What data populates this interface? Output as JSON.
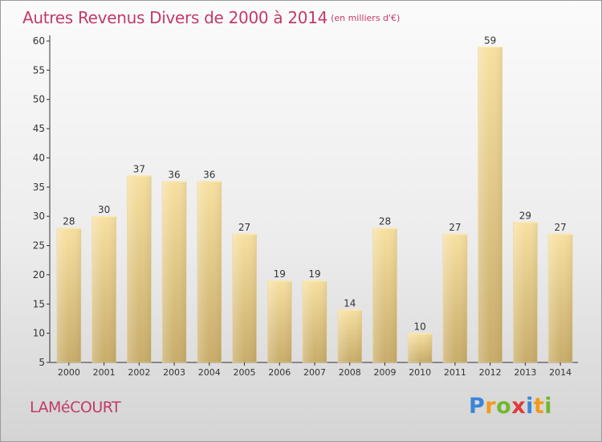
{
  "chart_data": {
    "type": "bar",
    "title": "Autres Revenus Divers de 2000 à 2014",
    "subtitle": "(en milliers d'€)",
    "categories": [
      "2000",
      "2001",
      "2002",
      "2003",
      "2004",
      "2005",
      "2006",
      "2007",
      "2008",
      "2009",
      "2010",
      "2011",
      "2012",
      "2013",
      "2014"
    ],
    "values": [
      28,
      30,
      37,
      36,
      36,
      27,
      19,
      19,
      14,
      28,
      10,
      27,
      59,
      29,
      27
    ],
    "ylim": [
      5,
      60
    ],
    "yticks": [
      5,
      10,
      15,
      20,
      25,
      30,
      35,
      40,
      45,
      50,
      55,
      60
    ],
    "grid": false,
    "xlabel": "",
    "ylabel": "",
    "colors": {
      "bar_light": "#f7e0a0",
      "bar_dark": "#c8ac6a",
      "title": "#c23a68"
    }
  },
  "footer": {
    "place": "LAMéCOURT",
    "brand": [
      "P",
      "r",
      "o",
      "x",
      "i",
      "t",
      "i"
    ],
    "brand_colors": [
      "#3a86d8",
      "#f39a1c",
      "#74b72e",
      "#e23a3a",
      "#3a86d8",
      "#f39a1c",
      "#74b72e"
    ]
  }
}
